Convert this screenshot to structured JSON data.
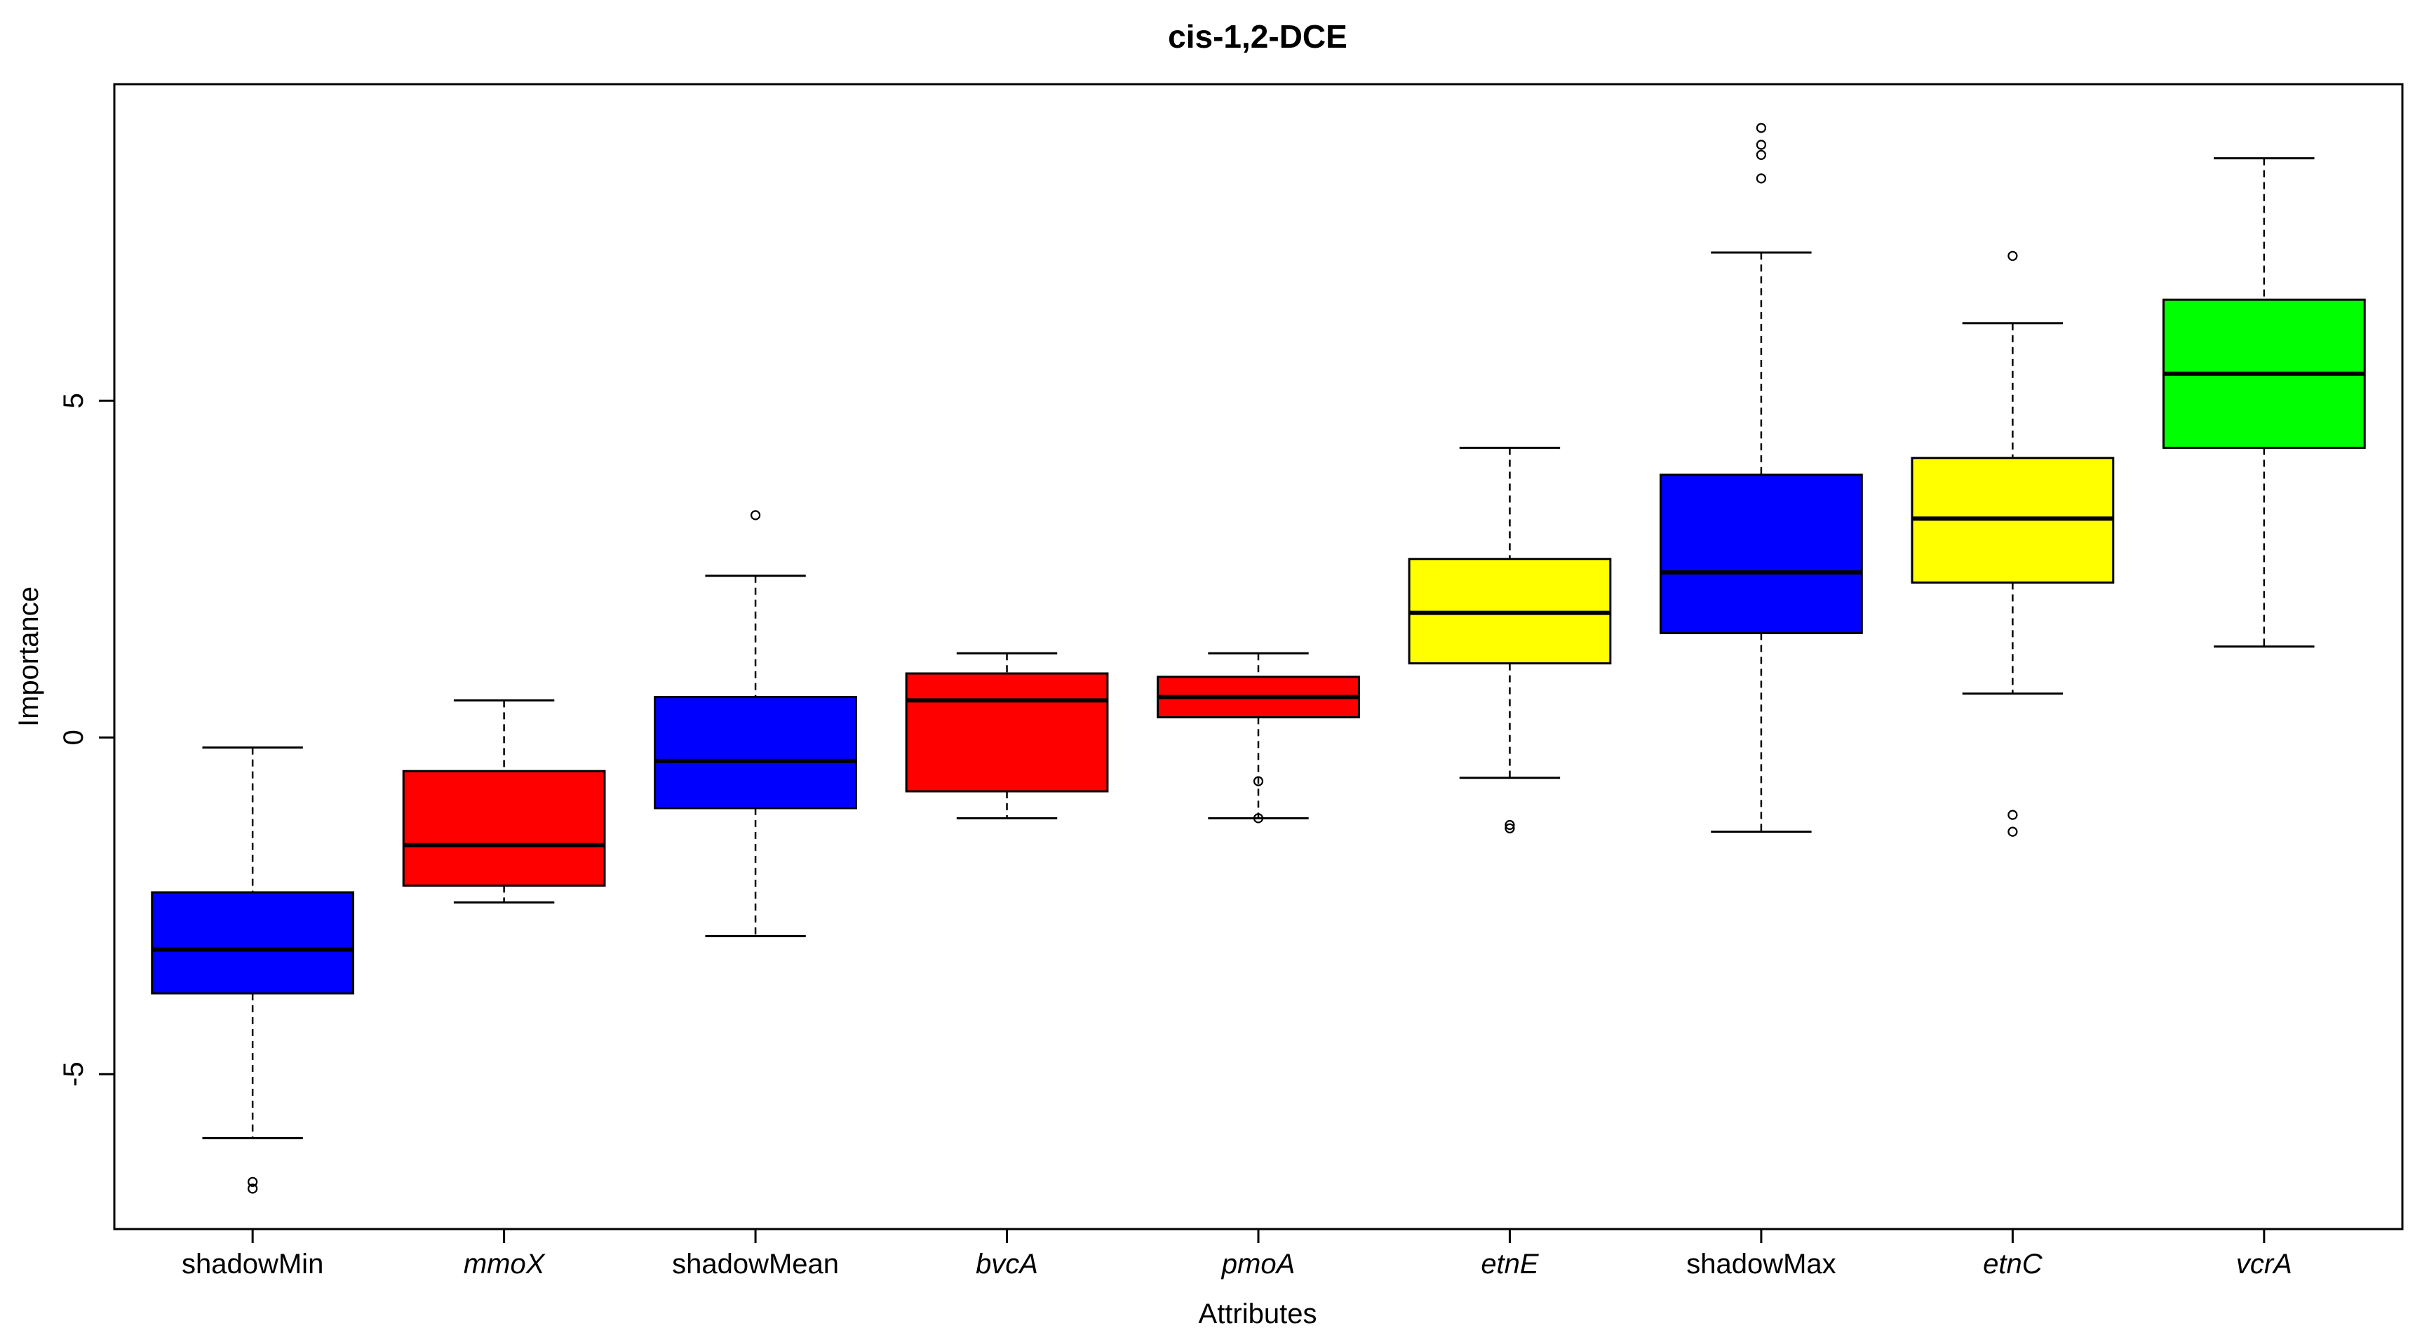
{
  "chart_data": {
    "type": "boxplot",
    "title": "cis-1,2-DCE",
    "xlabel": "Attributes",
    "ylabel": "Importance",
    "ylim": [
      -7.3,
      9.7
    ],
    "yticks": [
      {
        "value": -5,
        "label": "-5"
      },
      {
        "value": 0,
        "label": "0"
      },
      {
        "value": 5,
        "label": "5"
      }
    ],
    "grid": false,
    "legend": "none",
    "series": [
      {
        "name": "shadowMin",
        "italic": false,
        "color": "#0000ff",
        "whisker_low": -5.95,
        "q1": -3.8,
        "median": -3.15,
        "q3": -2.3,
        "whisker_high": -0.15,
        "outliers": [
          -6.6,
          -6.7
        ]
      },
      {
        "name": "mmoX",
        "italic": true,
        "color": "#ff0000",
        "whisker_low": -2.45,
        "q1": -2.2,
        "median": -1.6,
        "q3": -0.5,
        "whisker_high": 0.55,
        "outliers": []
      },
      {
        "name": "shadowMean",
        "italic": false,
        "color": "#0000ff",
        "whisker_low": -2.95,
        "q1": -1.05,
        "median": -0.35,
        "q3": 0.6,
        "whisker_high": 2.4,
        "outliers": [
          3.3
        ]
      },
      {
        "name": "bvcA",
        "italic": true,
        "color": "#ff0000",
        "whisker_low": -1.2,
        "q1": -0.8,
        "median": 0.55,
        "q3": 0.95,
        "whisker_high": 1.25,
        "outliers": []
      },
      {
        "name": "pmoA",
        "italic": true,
        "color": "#ff0000",
        "whisker_low": -1.2,
        "q1": 0.3,
        "median": 0.6,
        "q3": 0.9,
        "whisker_high": 1.25,
        "outliers": [
          -0.65,
          -1.2
        ]
      },
      {
        "name": "etnE",
        "italic": true,
        "color": "#ffff00",
        "whisker_low": -0.6,
        "q1": 1.1,
        "median": 1.85,
        "q3": 2.65,
        "whisker_high": 4.3,
        "outliers": [
          -1.3,
          -1.35
        ]
      },
      {
        "name": "shadowMax",
        "italic": false,
        "color": "#0000ff",
        "whisker_low": -1.4,
        "q1": 1.55,
        "median": 2.45,
        "q3": 3.9,
        "whisker_high": 7.2,
        "outliers": [
          8.3,
          8.65,
          8.8,
          9.05
        ]
      },
      {
        "name": "etnC",
        "italic": true,
        "color": "#ffff00",
        "whisker_low": 0.65,
        "q1": 2.3,
        "median": 3.25,
        "q3": 4.15,
        "whisker_high": 6.15,
        "outliers": [
          7.15,
          -1.15,
          -1.4
        ]
      },
      {
        "name": "vcrA",
        "italic": true,
        "color": "#00ff00",
        "whisker_low": 1.35,
        "q1": 4.3,
        "median": 5.4,
        "q3": 6.5,
        "whisker_high": 8.6,
        "outliers": []
      }
    ]
  }
}
